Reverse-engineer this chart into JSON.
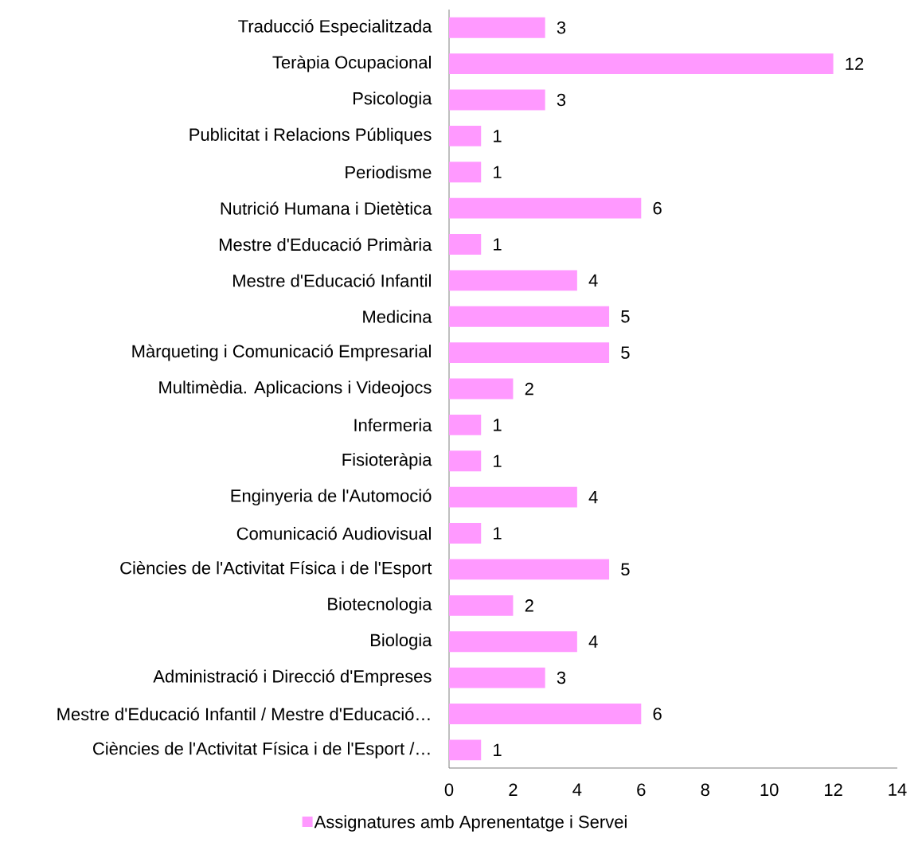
{
  "chart_data": {
    "type": "bar",
    "orientation": "horizontal",
    "categories": [
      "Traducció Especialitzada",
      "Teràpia Ocupacional",
      "Psicologia",
      "Publicitat i Relacions Públiques",
      "Periodisme",
      "Nutrició Humana i Dietètica",
      "Mestre d'Educació Primària",
      "Mestre d'Educació Infantil",
      "Medicina",
      "Màrqueting i Comunicació Empresarial",
      "Multimèdia. Aplicacions i Videojocs",
      "Infermeria",
      "Fisioteràpia",
      "Enginyeria de l'Automoció",
      "Comunicació Audiovisual",
      "Ciències de l'Activitat Física i de l'Esport",
      "Biotecnologia",
      "Biologia",
      "Administració i Direcció d'Empreses",
      "Mestre d'Educació Infantil / Mestre d'Educació…",
      "Ciències de l'Activitat Física i de l'Esport /…"
    ],
    "series": [
      {
        "name": "Assignatures amb Aprenentatge i Servei",
        "color": "#ff99ff",
        "values": [
          3,
          12,
          3,
          1,
          1,
          6,
          1,
          4,
          5,
          5,
          2,
          1,
          1,
          4,
          1,
          5,
          2,
          4,
          3,
          6,
          1
        ]
      }
    ],
    "xlim": [
      0,
      14
    ],
    "xticks": [
      0,
      2,
      4,
      6,
      8,
      10,
      12,
      14
    ],
    "data_labels": true,
    "legend": "bottom"
  }
}
